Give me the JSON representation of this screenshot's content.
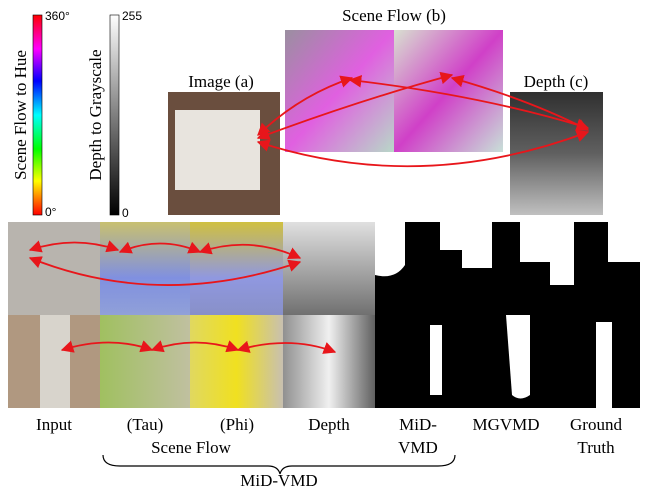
{
  "colorbars": [
    {
      "label": "Scene Flow to Hue",
      "max": "360°",
      "min": "0°"
    },
    {
      "label": "Depth to Grayscale",
      "max": "255",
      "min": "0"
    }
  ],
  "top_panels": [
    "Image (a)",
    "Scene Flow (b)",
    "Depth (c)"
  ],
  "columns": [
    [
      "Input"
    ],
    [
      "(Tau)"
    ],
    [
      "(Phi)"
    ],
    [
      "Depth"
    ],
    [
      "MiD-",
      "VMD"
    ],
    [
      "MGVMD"
    ],
    [
      "Ground",
      "Truth"
    ]
  ],
  "group_label": "Scene Flow",
  "brace_label": "MiD-VMD"
}
